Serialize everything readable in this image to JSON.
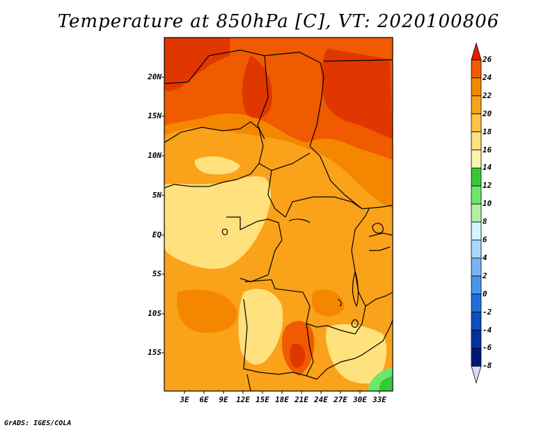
{
  "title": "Temperature at 850hPa [C], VT: 2020100806",
  "footer": "GrADS: IGES/COLA",
  "map": {
    "lat_labels": [
      "20N",
      "15N",
      "10N",
      "5N",
      "EQ",
      "5S",
      "10S",
      "15S"
    ],
    "lon_labels": [
      "3E",
      "6E",
      "9E",
      "12E",
      "15E",
      "18E",
      "21E",
      "24E",
      "27E",
      "30E",
      "33E"
    ]
  },
  "colorbar": {
    "labels": [
      "26",
      "24",
      "22",
      "20",
      "18",
      "16",
      "14",
      "12",
      "10",
      "8",
      "6",
      "4",
      "2",
      "0",
      "-2",
      "-4",
      "-6",
      "-8"
    ],
    "colors": [
      "#e03700",
      "#f05a00",
      "#f58700",
      "#faa21a",
      "#ffc347",
      "#ffe17d",
      "#fff3b0",
      "#37c837",
      "#6ee66e",
      "#b2f0a6",
      "#d7f5ff",
      "#a9d7ff",
      "#78b4f5",
      "#4a96eb",
      "#1e6ee0",
      "#0a4fc0",
      "#0032a0",
      "#00177a"
    ],
    "over_color": "#e61e00",
    "under_color": "#d8dcf2"
  }
}
